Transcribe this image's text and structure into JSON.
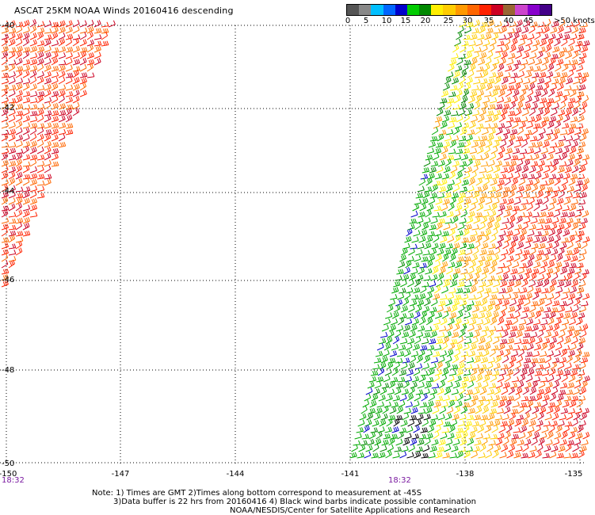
{
  "title": "ASCAT 25KM NOAA Winds 20160416 descending",
  "colorbar": {
    "colors": [
      "#555555",
      "#888888",
      "#00bfff",
      "#0066ff",
      "#0000cc",
      "#00cc00",
      "#008800",
      "#ffee00",
      "#ffcc00",
      "#ff9900",
      "#ff6600",
      "#ff2200",
      "#cc0022",
      "#996633",
      "#cc44cc",
      "#8800cc",
      "#440088"
    ],
    "labels": [
      "0",
      "5",
      "10",
      "15",
      "20",
      "25",
      "30",
      "35",
      "40",
      "45"
    ],
    "units": ">50 knots"
  },
  "lat_ticks": [
    "-40",
    "-42",
    "-44",
    "-46",
    "-48",
    "-50"
  ],
  "lon_ticks": [
    "-150",
    "-147",
    "-144",
    "-141",
    "-138",
    "-135"
  ],
  "time_labels": [
    "18:32",
    "18:32"
  ],
  "notes": {
    "line1": "Note: 1) Times are GMT 2)Times along bottom correspond to measurement at -45S",
    "line2": "3)Data buffer is 22 hrs from 20160416 4) Black wind barbs indicate possible contamination",
    "line3": "NOAA/NESDIS/Center for Satellite Applications and Research"
  }
}
